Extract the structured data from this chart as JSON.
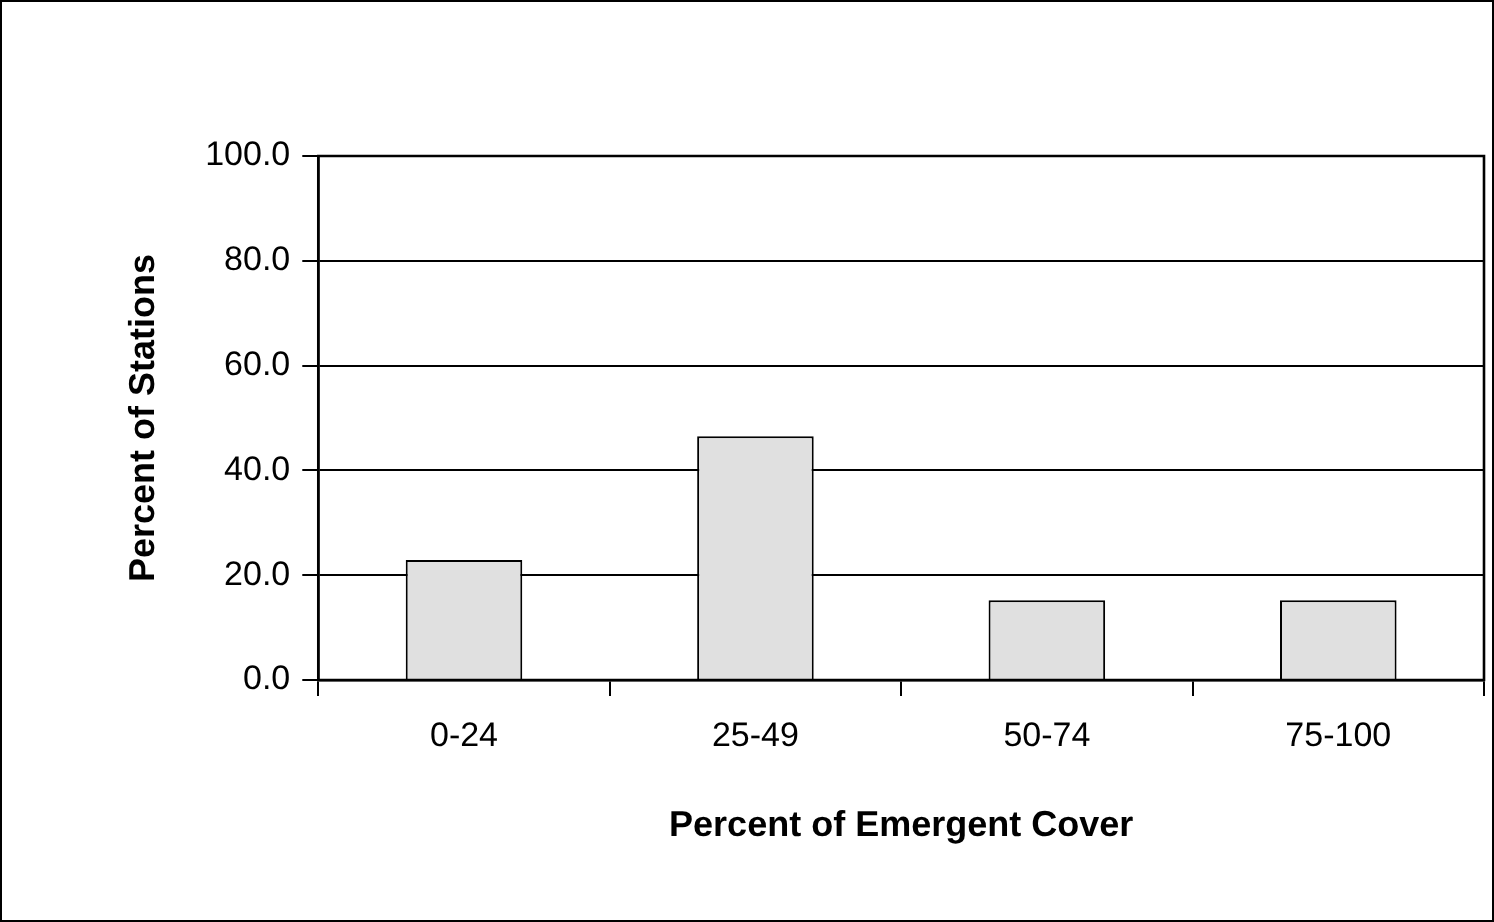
{
  "chart_data": {
    "type": "bar",
    "xlabel": "Percent of Emergent Cover",
    "ylabel": "Percent of Stations",
    "categories": [
      "0-24",
      "25-49",
      "50-74",
      "75-100"
    ],
    "values": [
      22.9,
      46.5,
      15.2,
      15.2
    ],
    "color": "#e0e0e0",
    "ylim": [
      0,
      100
    ],
    "yticks": [
      {
        "value": 0,
        "label": "0.0"
      },
      {
        "value": 20,
        "label": "20.0"
      },
      {
        "value": 40,
        "label": "40.0"
      },
      {
        "value": 60,
        "label": "60.0"
      },
      {
        "value": 80,
        "label": "80.0"
      },
      {
        "value": 100,
        "label": "100.0"
      }
    ],
    "grid": "y"
  }
}
